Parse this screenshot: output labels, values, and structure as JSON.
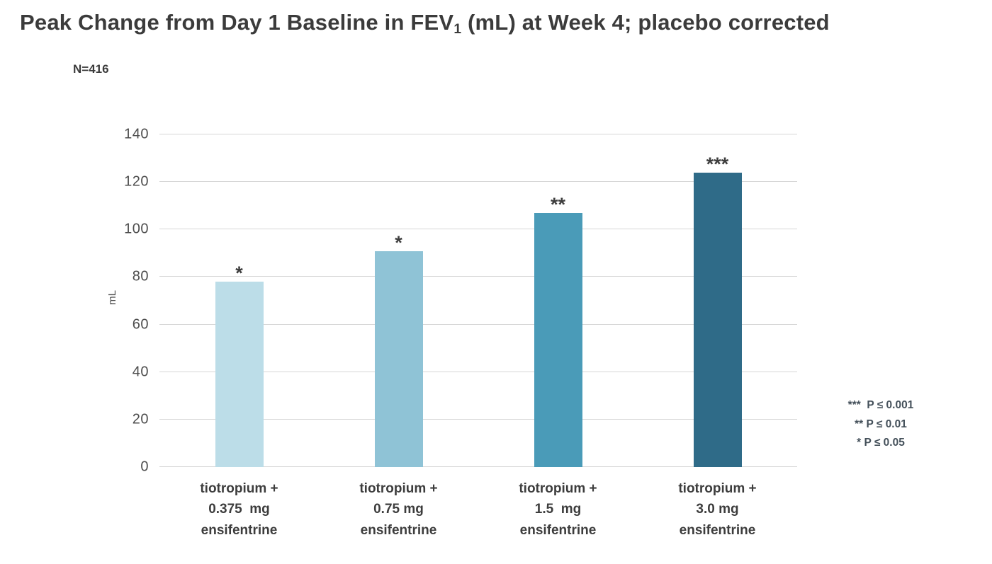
{
  "title": {
    "pre": "Peak Change from Day 1 Baseline in FEV",
    "sub": "1",
    "post": " (mL) at Week 4; placebo corrected"
  },
  "chart_data": {
    "type": "bar",
    "title": "Peak Change from Day 1 Baseline in FEV1 (mL) at Week 4; placebo corrected",
    "n_label": "N=416",
    "ylabel": "mL",
    "ylim": [
      0,
      140
    ],
    "yticks": [
      0,
      20,
      40,
      60,
      80,
      100,
      120,
      140
    ],
    "grid": true,
    "categories": [
      "tiotropium +\n0.375  mg\nensifentrine",
      "tiotropium +\n0.75 mg\nensifentrine",
      "tiotropium +\n1.5  mg\nensifentrine",
      "tiotropium +\n3.0 mg\nensifentrine"
    ],
    "values": [
      78,
      91,
      107,
      124
    ],
    "significance": [
      "*",
      "*",
      "**",
      "***"
    ],
    "bar_colors": [
      "#bcdde8",
      "#8fc3d6",
      "#4a9bb8",
      "#2f6b88"
    ],
    "legend": [
      "***  P ≤ 0.001",
      "** P ≤ 0.01",
      "* P ≤ 0.05"
    ],
    "legend_position": "right"
  }
}
